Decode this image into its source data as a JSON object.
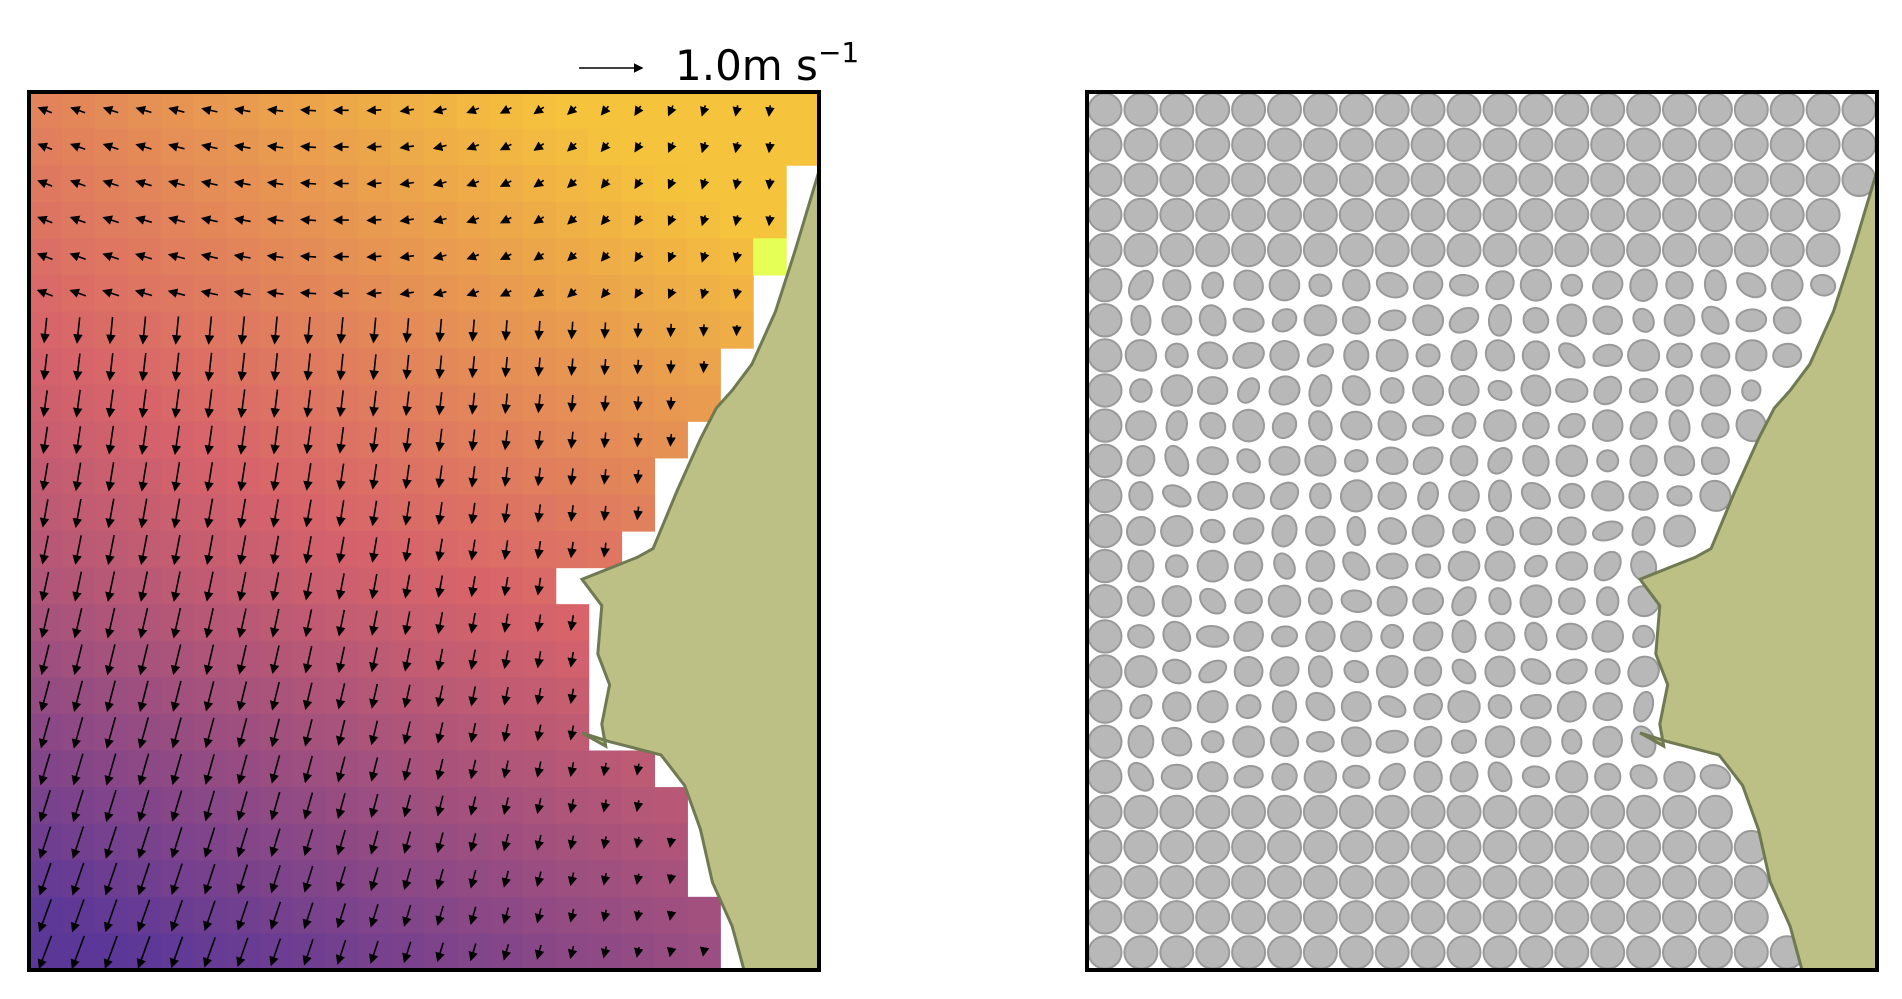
{
  "chart_data": [
    {
      "type": "quiver",
      "panel": "left",
      "quiver_key": {
        "value": 1.0,
        "label_value": "1.0",
        "label_unit": "m s",
        "label_exponent": "−1"
      },
      "grid_size": [
        24,
        24
      ],
      "color_scale": {
        "low": "#5b3798",
        "mid": "#d8646a",
        "high": "#f5c33c",
        "peak": "#e6ff55"
      },
      "coast_color": "#bdc084",
      "coast_edge": "#6f7a52"
    },
    {
      "type": "ellipse-field",
      "panel": "right",
      "grid_size": [
        22,
        25
      ],
      "ellipse_color": "#b4b4b4",
      "coast_color": "#bdc084",
      "coast_edge": "#6f7a52"
    }
  ]
}
